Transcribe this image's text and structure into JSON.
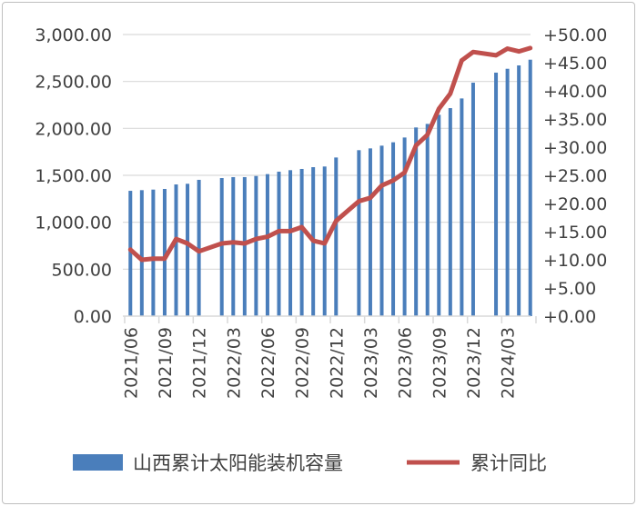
{
  "chart_data": {
    "type": "bar+line",
    "categories": [
      "2021/06",
      "2021/07",
      "2021/08",
      "2021/09",
      "2021/10",
      "2021/11",
      "2021/12",
      "2022/01",
      "2022/02",
      "2022/03",
      "2022/04",
      "2022/05",
      "2022/06",
      "2022/07",
      "2022/08",
      "2022/09",
      "2022/10",
      "2022/11",
      "2022/12",
      "2023/01",
      "2023/02",
      "2023/03",
      "2023/04",
      "2023/05",
      "2023/06",
      "2023/07",
      "2023/08",
      "2023/09",
      "2023/10",
      "2023/11",
      "2023/12",
      "2024/01",
      "2024/02",
      "2024/03",
      "2024/04",
      "2024/05"
    ],
    "x_tick_labels": [
      "2021/06",
      "2021/09",
      "2021/12",
      "2022/03",
      "2022/06",
      "2022/09",
      "2022/12",
      "2023/03",
      "2023/06",
      "2023/09",
      "2023/12",
      "2024/03"
    ],
    "series": [
      {
        "name": "山西累计太阳能装机容量",
        "type": "bar",
        "axis": "left",
        "color": "#4a7ebb",
        "values": [
          1335,
          1342,
          1348,
          1355,
          1403,
          1410,
          1452,
          null,
          1471,
          1481,
          1481,
          1493,
          1513,
          1539,
          1555,
          1568,
          1587,
          1594,
          1690,
          null,
          1768,
          1787,
          1816,
          1852,
          1903,
          2010,
          2048,
          2145,
          2216,
          2319,
          2487,
          null,
          2594,
          2635,
          2671,
          2732
        ]
      },
      {
        "name": "累计同比",
        "type": "line",
        "axis": "right",
        "color": "#c0504d",
        "values": [
          11.8,
          10.0,
          10.2,
          10.2,
          13.7,
          12.9,
          11.5,
          null,
          12.9,
          13.1,
          12.9,
          13.7,
          14.1,
          15.1,
          15.1,
          15.8,
          13.4,
          12.9,
          16.9,
          null,
          20.4,
          21.0,
          23.2,
          24.1,
          25.5,
          30.3,
          32.2,
          36.8,
          39.5,
          45.4,
          46.9,
          null,
          46.3,
          47.5,
          47.0,
          47.6
        ]
      }
    ],
    "left_axis": {
      "range": [
        0,
        3000
      ],
      "ticks": [
        "0.00",
        "500.00",
        "1,000.00",
        "1,500.00",
        "2,000.00",
        "2,500.00",
        "3,000.00"
      ]
    },
    "right_axis": {
      "range": [
        0,
        50
      ],
      "ticks": [
        "+0.00",
        "+5.00",
        "+10.00",
        "+15.00",
        "+20.00",
        "+25.00",
        "+30.00",
        "+35.00",
        "+40.00",
        "+45.00",
        "+50.00"
      ]
    },
    "grid": true,
    "legend_position": "bottom"
  }
}
